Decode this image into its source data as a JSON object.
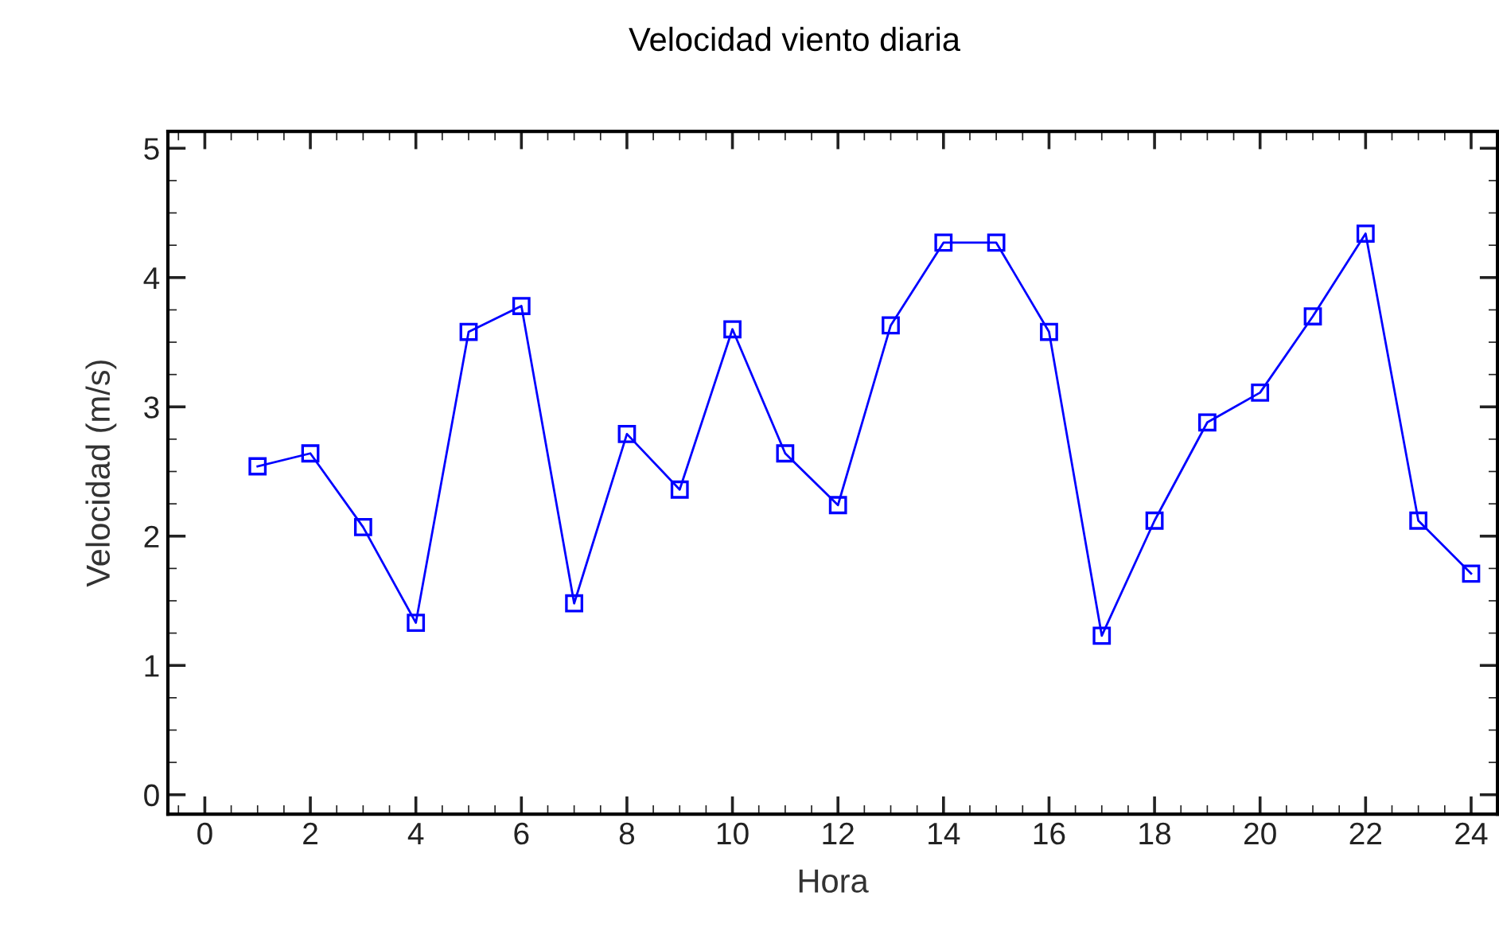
{
  "chart_data": {
    "type": "line",
    "title": "Velocidad viento diaria",
    "xlabel": "Hora",
    "ylabel": "Velocidad (m/s)",
    "x": [
      1,
      2,
      3,
      4,
      5,
      6,
      7,
      8,
      9,
      10,
      11,
      12,
      13,
      14,
      15,
      16,
      17,
      18,
      19,
      20,
      21,
      22,
      23,
      24
    ],
    "series": [
      {
        "color": "#0000ff",
        "values": [
          2.54,
          2.64,
          2.07,
          1.33,
          3.58,
          3.78,
          1.48,
          2.79,
          2.36,
          3.6,
          2.64,
          2.24,
          3.63,
          4.27,
          4.27,
          3.58,
          1.23,
          2.12,
          2.88,
          3.11,
          3.7,
          4.34,
          2.12,
          1.71
        ]
      }
    ],
    "xlim": [
      -0.7,
      24.5
    ],
    "ylim": [
      -0.15,
      5.13
    ],
    "xticks": [
      0,
      2,
      4,
      6,
      8,
      10,
      12,
      14,
      16,
      18,
      20,
      22,
      24
    ],
    "yticks": [
      0,
      1,
      2,
      3,
      4,
      5
    ],
    "marker": "square",
    "line_style": "solid",
    "grid": false,
    "legend": false
  }
}
